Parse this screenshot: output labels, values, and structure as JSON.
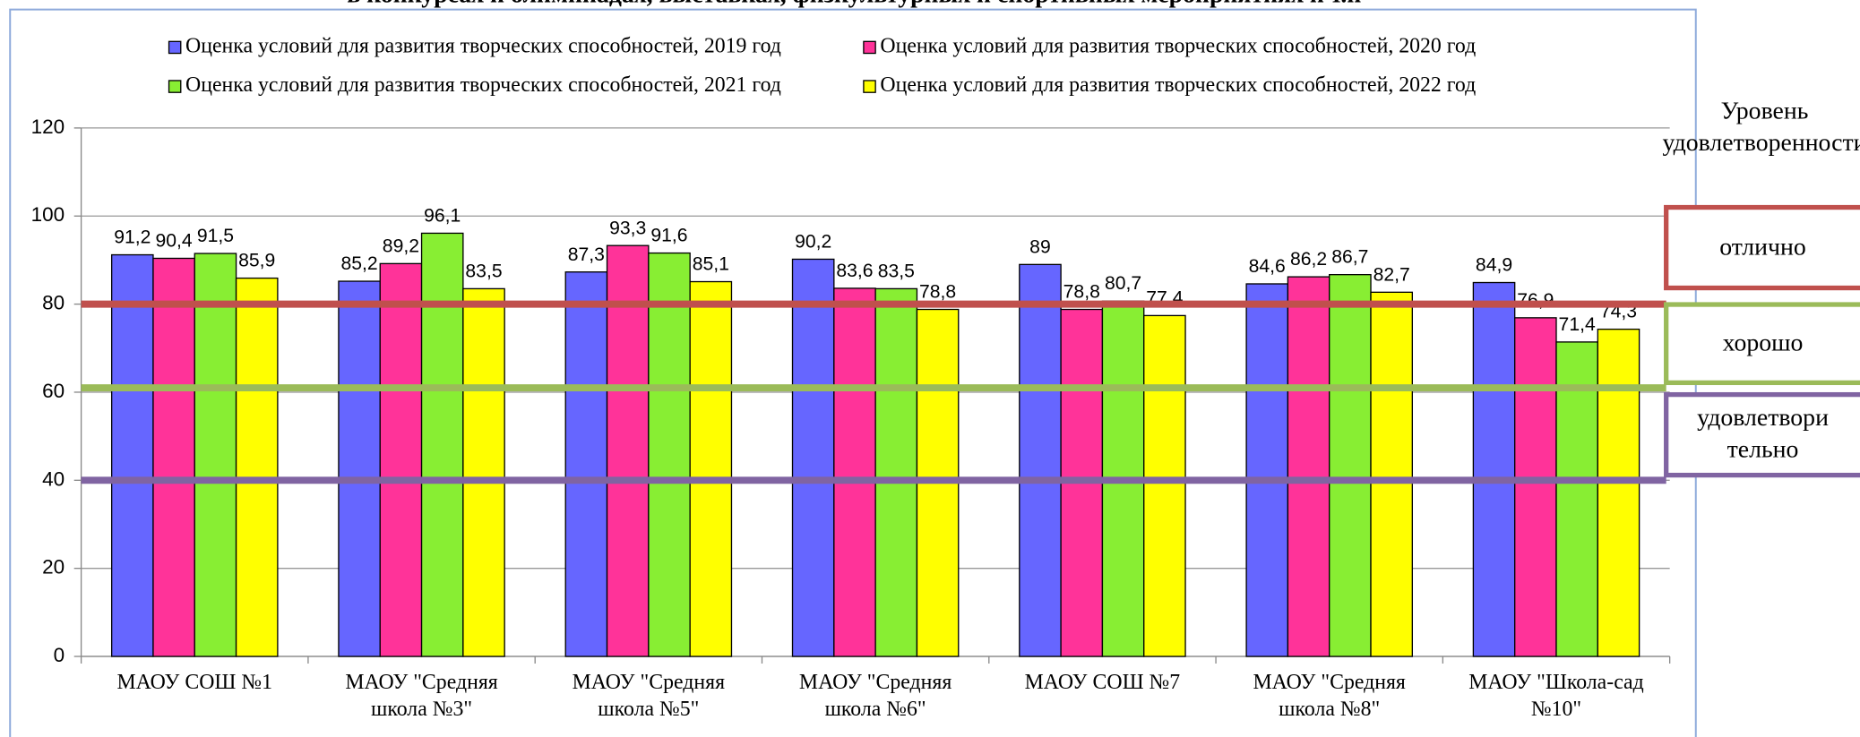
{
  "chart_data": {
    "type": "bar",
    "title": "в конкурсах и олимпиадах, выставках, физкультурных и спортивных мероприятиях и т.п",
    "categories": [
      "МАОУ СОШ №1",
      "МАОУ \"Средняя школа №3\"",
      "МАОУ \"Средняя школа №5\"",
      "МАОУ \"Средняя школа №6\"",
      "МАОУ СОШ №7",
      "МАОУ \"Средняя школа №8\"",
      "МАОУ \"Школа-сад №10\""
    ],
    "series": [
      {
        "name": "Оценка условий для развития творческих способностей, 2019 год",
        "color": "#6666ff",
        "values": [
          91.2,
          85.2,
          87.3,
          90.2,
          89,
          84.6,
          84.9
        ],
        "value_labels": [
          "91,2",
          "85,2",
          "87,3",
          "90,2",
          "89",
          "84,6",
          "84,9"
        ]
      },
      {
        "name": "Оценка условий для развития творческих способностей, 2020 год",
        "color": "#ff3399",
        "values": [
          90.4,
          89.2,
          93.3,
          83.6,
          78.8,
          86.2,
          76.9
        ],
        "value_labels": [
          "90,4",
          "89,2",
          "93,3",
          "83,6",
          "78,8",
          "86,2",
          "76,9"
        ]
      },
      {
        "name": "Оценка условий для развития творческих способностей, 2021 год",
        "color": "#88ee33",
        "values": [
          91.5,
          96.1,
          91.6,
          83.5,
          80.7,
          86.7,
          71.4
        ],
        "value_labels": [
          "91,5",
          "96,1",
          "91,6",
          "83,5",
          "80,7",
          "86,7",
          "71,4"
        ]
      },
      {
        "name": "Оценка условий для развития творческих способностей, 2022 год",
        "color": "#ffff00",
        "values": [
          85.9,
          83.5,
          85.1,
          78.8,
          77.4,
          82.7,
          74.3
        ],
        "value_labels": [
          "85,9",
          "83,5",
          "85,1",
          "78,8",
          "77,4",
          "82,7",
          "74,3"
        ]
      }
    ],
    "ylim": [
      0,
      120
    ],
    "yticks": [
      0,
      20,
      40,
      60,
      80,
      100,
      120
    ],
    "grid": true,
    "legend_title": "Уровень\nудовлетворенности",
    "reference_lines": [
      {
        "value": 80,
        "color": "#c0504d",
        "label": "отлично"
      },
      {
        "value": 61,
        "color": "#9bbb59",
        "label": "хорошо"
      },
      {
        "value": 40,
        "color": "#8064a2",
        "label": "удовлетвори\nтельно"
      }
    ]
  }
}
